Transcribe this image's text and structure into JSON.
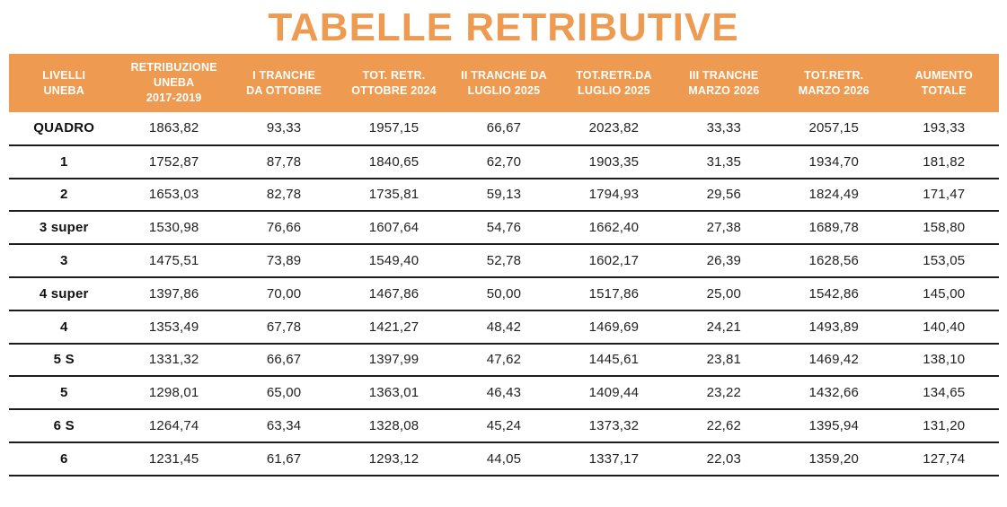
{
  "title": "TABELLE RETRIBUTIVE",
  "colors": {
    "accent_orange": "#EE9A50",
    "header_text": "#FFFFFF",
    "body_text": "#222222",
    "row_border": "#1C1C1C"
  },
  "table": {
    "columns": [
      "LIVELLI\nUNEBA",
      "RETRIBUZIONE\nUNEBA\n2017-2019",
      "I TRANCHE\nDA OTTOBRE",
      "TOT. RETR.\nOTTOBRE 2024",
      "II TRANCHE DA\nLUGLIO 2025",
      "TOT.RETR.DA\nLUGLIO 2025",
      "III TRANCHE\nMARZO 2026",
      "TOT.RETR.\nMARZO 2026",
      "AUMENTO\nTOTALE"
    ],
    "rows": [
      {
        "level": "QUADRO",
        "values": [
          "1863,82",
          "93,33",
          "1957,15",
          "66,67",
          "2023,82",
          "33,33",
          "2057,15",
          "193,33"
        ]
      },
      {
        "level": "1",
        "values": [
          "1752,87",
          "87,78",
          "1840,65",
          "62,70",
          "1903,35",
          "31,35",
          "1934,70",
          "181,82"
        ]
      },
      {
        "level": "2",
        "values": [
          "1653,03",
          "82,78",
          "1735,81",
          "59,13",
          "1794,93",
          "29,56",
          "1824,49",
          "171,47"
        ]
      },
      {
        "level": "3 super",
        "values": [
          "1530,98",
          "76,66",
          "1607,64",
          "54,76",
          "1662,40",
          "27,38",
          "1689,78",
          "158,80"
        ]
      },
      {
        "level": "3",
        "values": [
          "1475,51",
          "73,89",
          "1549,40",
          "52,78",
          "1602,17",
          "26,39",
          "1628,56",
          "153,05"
        ]
      },
      {
        "level": "4 super",
        "values": [
          "1397,86",
          "70,00",
          "1467,86",
          "50,00",
          "1517,86",
          "25,00",
          "1542,86",
          "145,00"
        ]
      },
      {
        "level": "4",
        "values": [
          "1353,49",
          "67,78",
          "1421,27",
          "48,42",
          "1469,69",
          "24,21",
          "1493,89",
          "140,40"
        ]
      },
      {
        "level": "5 S",
        "values": [
          "1331,32",
          "66,67",
          "1397,99",
          "47,62",
          "1445,61",
          "23,81",
          "1469,42",
          "138,10"
        ]
      },
      {
        "level": "5",
        "values": [
          "1298,01",
          "65,00",
          "1363,01",
          "46,43",
          "1409,44",
          "23,22",
          "1432,66",
          "134,65"
        ]
      },
      {
        "level": "6 S",
        "values": [
          "1264,74",
          "63,34",
          "1328,08",
          "45,24",
          "1373,32",
          "22,62",
          "1395,94",
          "131,20"
        ]
      },
      {
        "level": "6",
        "values": [
          "1231,45",
          "61,67",
          "1293,12",
          "44,05",
          "1337,17",
          "22,03",
          "1359,20",
          "127,74"
        ]
      }
    ]
  }
}
